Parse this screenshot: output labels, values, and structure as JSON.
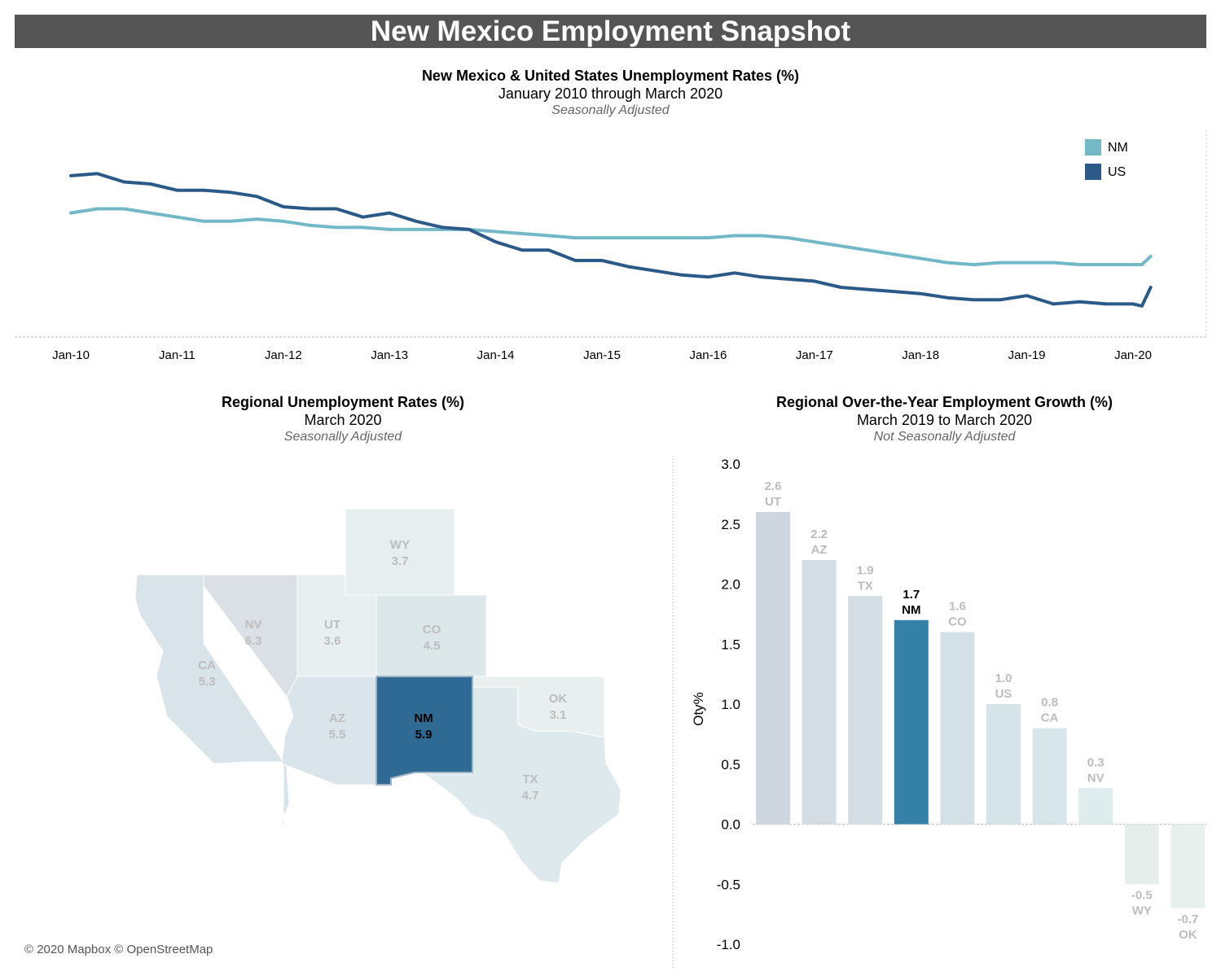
{
  "banner_title": "New Mexico Employment Snapshot",
  "colors": {
    "banner_bg": "#555555",
    "nm_line": "#72b8c7",
    "us_line": "#2c5a88",
    "nm_highlight": "#2f6a94",
    "bar_nm": "#3580a6"
  },
  "line_chart_header": {
    "title": "New Mexico & United States Unemployment Rates (%)",
    "subtitle": "January 2010 through March 2020",
    "note": "Seasonally Adjusted"
  },
  "map_header": {
    "title": "Regional Unemployment Rates (%)",
    "subtitle": "March 2020",
    "note": "Seasonally Adjusted"
  },
  "bar_header": {
    "title": "Regional Over-the-Year Employment Growth (%)",
    "subtitle": "March 2019 to March 2020",
    "note": "Not Seasonally Adjusted"
  },
  "map_credit": "© 2020 Mapbox © OpenStreetMap",
  "chart_data": [
    {
      "type": "line",
      "x_ticks": [
        "Jan-10",
        "Jan-11",
        "Jan-12",
        "Jan-13",
        "Jan-14",
        "Jan-15",
        "Jan-16",
        "Jan-17",
        "Jan-18",
        "Jan-19",
        "Jan-20"
      ],
      "ylim": [
        2,
        12
      ],
      "grid": false,
      "legend": "top-right",
      "series": [
        {
          "name": "NM",
          "points": [
            [
              "2010-01",
              8.0
            ],
            [
              "2010-04",
              8.2
            ],
            [
              "2010-07",
              8.2
            ],
            [
              "2010-10",
              8.0
            ],
            [
              "2011-01",
              7.8
            ],
            [
              "2011-04",
              7.6
            ],
            [
              "2011-07",
              7.6
            ],
            [
              "2011-10",
              7.7
            ],
            [
              "2012-01",
              7.6
            ],
            [
              "2012-04",
              7.4
            ],
            [
              "2012-07",
              7.3
            ],
            [
              "2012-10",
              7.3
            ],
            [
              "2013-01",
              7.2
            ],
            [
              "2013-04",
              7.2
            ],
            [
              "2013-07",
              7.2
            ],
            [
              "2013-10",
              7.2
            ],
            [
              "2014-01",
              7.1
            ],
            [
              "2014-04",
              7.0
            ],
            [
              "2014-07",
              6.9
            ],
            [
              "2014-10",
              6.8
            ],
            [
              "2015-01",
              6.8
            ],
            [
              "2015-04",
              6.8
            ],
            [
              "2015-07",
              6.8
            ],
            [
              "2015-10",
              6.8
            ],
            [
              "2016-01",
              6.8
            ],
            [
              "2016-04",
              6.9
            ],
            [
              "2016-07",
              6.9
            ],
            [
              "2016-10",
              6.8
            ],
            [
              "2017-01",
              6.6
            ],
            [
              "2017-04",
              6.4
            ],
            [
              "2017-07",
              6.2
            ],
            [
              "2017-10",
              6.0
            ],
            [
              "2018-01",
              5.8
            ],
            [
              "2018-04",
              5.6
            ],
            [
              "2018-07",
              5.5
            ],
            [
              "2018-10",
              5.6
            ],
            [
              "2019-01",
              5.6
            ],
            [
              "2019-04",
              5.6
            ],
            [
              "2019-07",
              5.5
            ],
            [
              "2019-10",
              5.5
            ],
            [
              "2020-01",
              5.5
            ],
            [
              "2020-02",
              5.5
            ],
            [
              "2020-03",
              5.9
            ]
          ]
        },
        {
          "name": "US",
          "points": [
            [
              "2010-01",
              9.8
            ],
            [
              "2010-04",
              9.9
            ],
            [
              "2010-07",
              9.5
            ],
            [
              "2010-10",
              9.4
            ],
            [
              "2011-01",
              9.1
            ],
            [
              "2011-04",
              9.1
            ],
            [
              "2011-07",
              9.0
            ],
            [
              "2011-10",
              8.8
            ],
            [
              "2012-01",
              8.3
            ],
            [
              "2012-04",
              8.2
            ],
            [
              "2012-07",
              8.2
            ],
            [
              "2012-10",
              7.8
            ],
            [
              "2013-01",
              8.0
            ],
            [
              "2013-04",
              7.6
            ],
            [
              "2013-07",
              7.3
            ],
            [
              "2013-10",
              7.2
            ],
            [
              "2014-01",
              6.6
            ],
            [
              "2014-04",
              6.2
            ],
            [
              "2014-07",
              6.2
            ],
            [
              "2014-10",
              5.7
            ],
            [
              "2015-01",
              5.7
            ],
            [
              "2015-04",
              5.4
            ],
            [
              "2015-07",
              5.2
            ],
            [
              "2015-10",
              5.0
            ],
            [
              "2016-01",
              4.9
            ],
            [
              "2016-04",
              5.1
            ],
            [
              "2016-07",
              4.9
            ],
            [
              "2016-10",
              4.8
            ],
            [
              "2017-01",
              4.7
            ],
            [
              "2017-04",
              4.4
            ],
            [
              "2017-07",
              4.3
            ],
            [
              "2017-10",
              4.2
            ],
            [
              "2018-01",
              4.1
            ],
            [
              "2018-04",
              3.9
            ],
            [
              "2018-07",
              3.8
            ],
            [
              "2018-10",
              3.8
            ],
            [
              "2019-01",
              4.0
            ],
            [
              "2019-04",
              3.6
            ],
            [
              "2019-07",
              3.7
            ],
            [
              "2019-10",
              3.6
            ],
            [
              "2020-01",
              3.6
            ],
            [
              "2020-02",
              3.5
            ],
            [
              "2020-03",
              4.4
            ]
          ]
        }
      ]
    },
    {
      "type": "choropleth",
      "regions": [
        {
          "abbr": "CA",
          "value": "5.3"
        },
        {
          "abbr": "NV",
          "value": "6.3"
        },
        {
          "abbr": "UT",
          "value": "3.6"
        },
        {
          "abbr": "WY",
          "value": "3.7"
        },
        {
          "abbr": "CO",
          "value": "4.5"
        },
        {
          "abbr": "AZ",
          "value": "5.5"
        },
        {
          "abbr": "NM",
          "value": "5.9",
          "highlight": true
        },
        {
          "abbr": "OK",
          "value": "3.1"
        },
        {
          "abbr": "TX",
          "value": "4.7"
        }
      ]
    },
    {
      "type": "bar",
      "ylabel": "Oty%",
      "ylim": [
        -1.0,
        3.0
      ],
      "y_ticks": [
        "3.0",
        "2.5",
        "2.0",
        "1.5",
        "1.0",
        "0.5",
        "0.0",
        "-0.5",
        "-1.0"
      ],
      "categories": [
        "UT",
        "AZ",
        "TX",
        "NM",
        "CO",
        "US",
        "CA",
        "NV",
        "WY",
        "OK"
      ],
      "values": [
        2.6,
        2.2,
        1.9,
        1.7,
        1.6,
        1.0,
        0.8,
        0.3,
        -0.5,
        -0.7
      ],
      "labels": [
        "2.6",
        "2.2",
        "1.9",
        "1.7",
        "1.6",
        "1.0",
        "0.8",
        "0.3",
        "-0.5",
        "-0.7"
      ],
      "highlight": "NM"
    }
  ]
}
